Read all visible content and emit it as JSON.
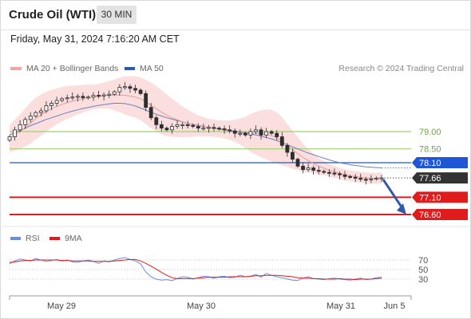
{
  "header": {
    "title": "Crude Oil (WTI)",
    "timeframe": "30 MIN"
  },
  "datetime": "Friday, May 31, 2024 7:16:20 AM CET",
  "legend": {
    "ma20": "MA 20 + Bollinger Bands",
    "ma50": "MA 50",
    "rsi": "RSI",
    "ma9": "9MA",
    "research": "Research © 2024 Trading Central"
  },
  "colors": {
    "candle": "#2e2e2e",
    "bollinger": "#f7c5c5",
    "ma20": "#e89a9a",
    "ma50": "#6b7fc0",
    "resistance": "#9dcf72",
    "pivot": "#1f56d6",
    "support": "#e01b1b",
    "price_tag": "#333333",
    "rsi": "#6b8ddf",
    "rsi_ma": "#e01b1b",
    "arrow": "#2f5aa8"
  },
  "chart_data": [
    {
      "type": "line",
      "name": "price",
      "x_labels": [
        "May 29",
        "May 30",
        "May 31",
        "Jun 5"
      ],
      "ylim": [
        76.3,
        80.5
      ],
      "levels": [
        {
          "value": 79.0,
          "label": "79.00",
          "kind": "resistance"
        },
        {
          "value": 78.5,
          "label": "78.50",
          "kind": "resistance"
        },
        {
          "value": 78.1,
          "label": "78.10",
          "kind": "pivot"
        },
        {
          "value": 77.66,
          "label": "77.66",
          "kind": "last"
        },
        {
          "value": 77.1,
          "label": "77.10",
          "kind": "support"
        },
        {
          "value": 76.6,
          "label": "76.60",
          "kind": "support"
        }
      ],
      "close": [
        78.85,
        79.05,
        79.2,
        79.35,
        79.45,
        79.55,
        79.6,
        79.75,
        79.82,
        79.9,
        79.95,
        79.98,
        80.0,
        80.02,
        79.98,
        80.0,
        80.05,
        80.03,
        80.06,
        80.08,
        80.15,
        80.28,
        80.3,
        80.25,
        80.2,
        80.1,
        79.7,
        79.4,
        79.2,
        79.1,
        79.05,
        79.15,
        79.2,
        79.2,
        79.18,
        79.15,
        79.1,
        79.1,
        79.12,
        79.1,
        79.08,
        79.05,
        79.02,
        78.95,
        78.95,
        78.9,
        79.0,
        79.05,
        78.9,
        79.0,
        78.95,
        78.85,
        78.6,
        78.4,
        78.2,
        78.0,
        77.9,
        77.95,
        77.88,
        77.85,
        77.82,
        77.8,
        77.78,
        77.75,
        77.7,
        77.68,
        77.65,
        77.62,
        77.6,
        77.63,
        77.65,
        77.66
      ],
      "ma20": [
        78.8,
        78.9,
        79.0,
        79.12,
        79.25,
        79.38,
        79.48,
        79.58,
        79.66,
        79.73,
        79.79,
        79.84,
        79.88,
        79.92,
        79.95,
        79.98,
        80.0,
        80.02,
        80.04,
        80.06,
        80.06,
        80.06,
        80.05,
        80.03,
        80.0,
        79.95,
        79.86,
        79.76,
        79.66,
        79.56,
        79.47,
        79.4,
        79.34,
        79.28,
        79.24,
        79.2,
        79.17,
        79.14,
        79.12,
        79.1,
        79.08,
        79.06,
        79.04,
        79.02,
        79.0,
        78.98,
        78.96,
        78.95,
        78.94,
        78.92,
        78.88,
        78.82,
        78.72,
        78.6,
        78.48,
        78.36,
        78.25,
        78.16,
        78.08,
        78.0,
        77.94,
        77.88,
        77.83,
        77.79,
        77.75,
        77.72,
        77.7,
        77.68,
        77.66,
        77.65,
        77.65,
        77.66
      ],
      "ma50": [
        78.9,
        78.97,
        79.04,
        79.1,
        79.17,
        79.23,
        79.29,
        79.35,
        79.4,
        79.45,
        79.5,
        79.55,
        79.59,
        79.63,
        79.67,
        79.7,
        79.73,
        79.76,
        79.78,
        79.8,
        79.82,
        79.82,
        79.81,
        79.78,
        79.74,
        79.68,
        79.62,
        79.56,
        79.5,
        79.45,
        79.4,
        79.36,
        79.32,
        79.28,
        79.24,
        79.21,
        79.18,
        79.15,
        79.12,
        79.1,
        79.07,
        79.05,
        79.02,
        79.0,
        78.98,
        78.96,
        78.93,
        78.9,
        78.87,
        78.83,
        78.79,
        78.74,
        78.68,
        78.62,
        78.56,
        78.5,
        78.44,
        78.38,
        78.33,
        78.28,
        78.23,
        78.18,
        78.14,
        78.1,
        78.07,
        78.04,
        78.02,
        78.0,
        77.98,
        77.97,
        77.96,
        77.95
      ],
      "bb_width": [
        0.4,
        0.45,
        0.5,
        0.55,
        0.6,
        0.6,
        0.6,
        0.58,
        0.55,
        0.52,
        0.5,
        0.48,
        0.45,
        0.42,
        0.4,
        0.38,
        0.36,
        0.36,
        0.38,
        0.4,
        0.45,
        0.5,
        0.55,
        0.58,
        0.6,
        0.62,
        0.64,
        0.66,
        0.66,
        0.64,
        0.6,
        0.55,
        0.5,
        0.45,
        0.4,
        0.35,
        0.3,
        0.28,
        0.25,
        0.25,
        0.25,
        0.26,
        0.28,
        0.32,
        0.38,
        0.45,
        0.55,
        0.62,
        0.68,
        0.72,
        0.75,
        0.74,
        0.7,
        0.62,
        0.55,
        0.48,
        0.4,
        0.34,
        0.28,
        0.24,
        0.2,
        0.18,
        0.17,
        0.16,
        0.16,
        0.16,
        0.16,
        0.16,
        0.16,
        0.16,
        0.16,
        0.16
      ]
    },
    {
      "type": "line",
      "name": "rsi",
      "levels": [
        {
          "value": 70,
          "label": "70"
        },
        {
          "value": 50,
          "label": "50"
        },
        {
          "value": 30,
          "label": "30"
        }
      ],
      "rsi": [
        62,
        68,
        72,
        70,
        68,
        73,
        70,
        67,
        69,
        71,
        68,
        70,
        66,
        65,
        68,
        70,
        67,
        63,
        68,
        66,
        70,
        73,
        75,
        71,
        68,
        62,
        45,
        35,
        30,
        28,
        29,
        27,
        31,
        35,
        34,
        30,
        33,
        36,
        35,
        32,
        35,
        36,
        33,
        34,
        38,
        35,
        36,
        40,
        34,
        42,
        38,
        35,
        33,
        30,
        28,
        27,
        32,
        35,
        31,
        30,
        29,
        31,
        32,
        30,
        29,
        28,
        30,
        32,
        29,
        30,
        33,
        34
      ],
      "rsi_ma": [
        65,
        66,
        68,
        69,
        69,
        70,
        70,
        70,
        70,
        70,
        69,
        69,
        68,
        68,
        68,
        68,
        67,
        67,
        67,
        67,
        68,
        69,
        70,
        71,
        71,
        68,
        63,
        57,
        51,
        44,
        38,
        33,
        31,
        31,
        31,
        31,
        32,
        33,
        34,
        34,
        34,
        34,
        35,
        35,
        35,
        35,
        36,
        37,
        37,
        38,
        38,
        38,
        37,
        36,
        35,
        33,
        32,
        32,
        31,
        31,
        30,
        30,
        30,
        31,
        30,
        30,
        29,
        30,
        30,
        30,
        31,
        32
      ]
    }
  ]
}
